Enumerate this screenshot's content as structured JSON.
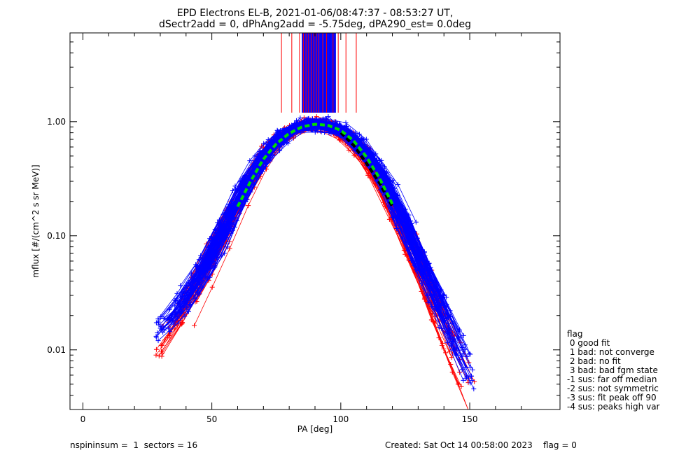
{
  "title_line1": "EPD Electrons EL-B, 2021-01-06/08:47:37 - 08:53:27 UT,",
  "title_line2": "dSectr2add = 0, dPhAng2add = -5.75deg, dPA290_est=   0.0deg",
  "footer": {
    "left": "nspininsum =  1  sectors = 16",
    "right": "Created: Sat Oct 14 00:58:00 2023    flag = 0"
  },
  "legend": {
    "title": "flag",
    "entries": [
      " 0 good fit",
      " 1 bad: not converge",
      " 2 bad: no fit",
      " 3 bad: bad fgm state",
      "-1 sus: far off median",
      "-2 sus: not symmetric",
      "-3 sus: fit peak off 90",
      "-4 sus: peaks high var"
    ]
  },
  "colors": {
    "series_a": "#0000ff",
    "series_b": "#ff0000",
    "fit_green": "#00dd00",
    "fit_black": "#000000"
  },
  "chart_data": {
    "type": "line",
    "title": "EPD Electrons EL-B, 2021-01-06/08:47:37 - 08:53:27 UT, dSectr2add = 0, dPhAng2add = -5.75deg, dPA290_est=   0.0deg",
    "xlabel": "PA [deg]",
    "ylabel": "mflux [#/(cm^2 s sr MeV)]",
    "xlim": [
      -5,
      185
    ],
    "ylim": [
      0.003,
      6.0
    ],
    "yscale": "log",
    "grid": false,
    "x_ticks": [
      0,
      50,
      100,
      150
    ],
    "y_ticks": [
      {
        "value": 0.01,
        "label": "0.01"
      },
      {
        "value": 0.1,
        "label": "0.10"
      },
      {
        "value": 1.0,
        "label": "1.00"
      }
    ],
    "legend_placement": "outside right",
    "series": [
      {
        "color": "blue",
        "x": [
          32,
          36,
          40,
          45,
          50,
          55,
          60,
          65,
          70,
          75,
          80,
          85,
          90,
          95,
          100,
          105,
          110,
          115,
          120,
          125,
          130,
          135,
          140,
          145,
          150
        ],
        "values": [
          0.018,
          0.022,
          0.03,
          0.045,
          0.07,
          0.12,
          0.2,
          0.33,
          0.5,
          0.68,
          0.82,
          0.92,
          0.95,
          0.92,
          0.85,
          0.72,
          0.55,
          0.38,
          0.23,
          0.13,
          0.07,
          0.04,
          0.022,
          0.012,
          0.007
        ]
      },
      {
        "color": "red",
        "x": [
          30,
          35,
          40,
          45,
          50,
          55,
          60,
          65,
          70,
          75,
          80,
          85,
          90,
          95,
          100,
          105,
          110,
          115,
          120,
          125,
          130,
          135,
          140,
          145,
          150
        ],
        "values": [
          0.011,
          0.016,
          0.025,
          0.04,
          0.065,
          0.11,
          0.19,
          0.31,
          0.48,
          0.66,
          0.81,
          0.92,
          0.96,
          0.92,
          0.82,
          0.66,
          0.48,
          0.31,
          0.19,
          0.11,
          0.06,
          0.032,
          0.017,
          0.009,
          0.005
        ]
      },
      {
        "color": "green-dashed",
        "x": [
          60,
          65,
          70,
          75,
          80,
          85,
          90,
          95,
          100,
          105,
          110,
          115,
          120
        ],
        "values": [
          0.18,
          0.3,
          0.47,
          0.64,
          0.79,
          0.9,
          0.95,
          0.93,
          0.84,
          0.68,
          0.49,
          0.32,
          0.19
        ]
      },
      {
        "color": "black-dashed",
        "x": [
          100,
          105,
          110,
          115,
          120
        ],
        "values": [
          0.8,
          0.62,
          0.43,
          0.29,
          0.18
        ]
      }
    ],
    "vertical_markers": {
      "y_bottom": 1.2,
      "y_top": 6.0,
      "blue_x_range": [
        85,
        98
      ],
      "red_x": [
        77,
        81,
        84,
        85.5,
        86.5,
        87.5,
        88.5,
        89.5,
        90.5,
        91.5,
        93,
        94.5,
        97,
        99,
        102,
        106
      ]
    }
  }
}
